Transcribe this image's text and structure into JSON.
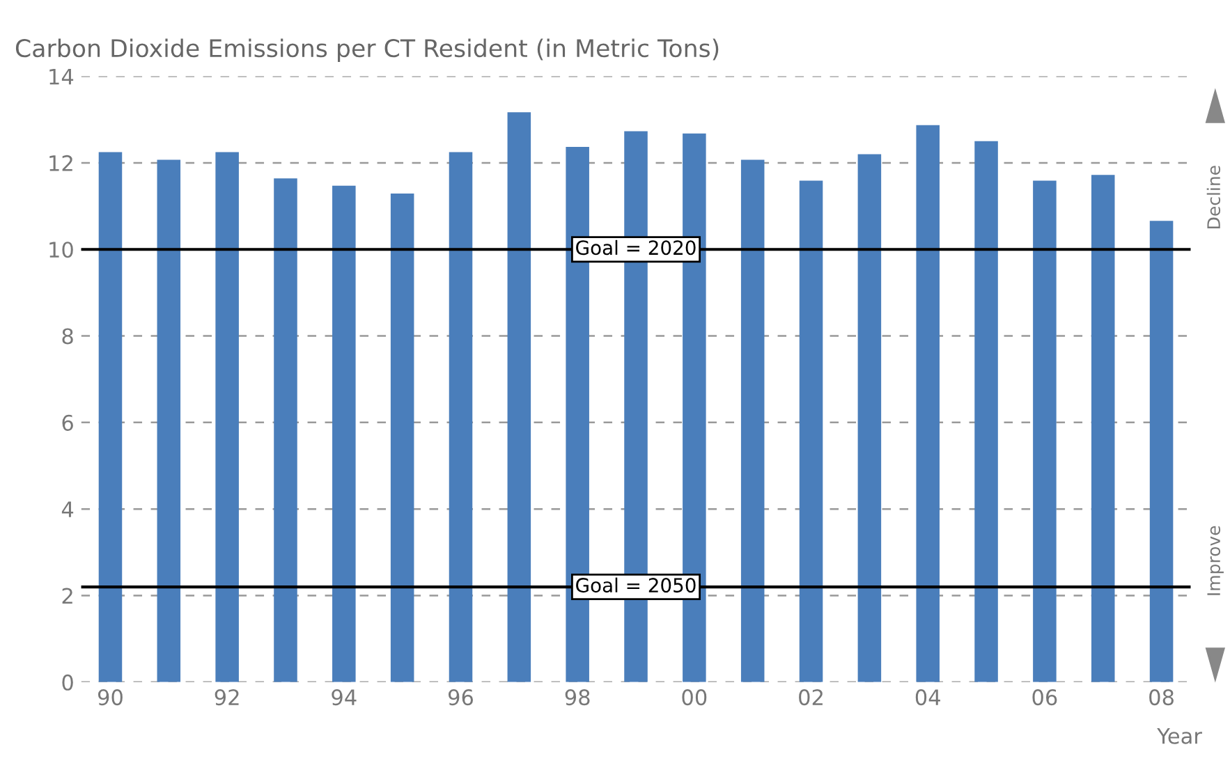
{
  "chart_data": {
    "type": "bar",
    "title": "Carbon Dioxide Emissions per CT Resident (in Metric Tons)",
    "xlabel": "Year",
    "categories": [
      "90",
      null,
      "92",
      null,
      "94",
      null,
      "96",
      null,
      "98",
      null,
      "00",
      null,
      "02",
      null,
      "04",
      null,
      "06",
      null,
      "08"
    ],
    "values": [
      12.25,
      12.07,
      12.25,
      11.64,
      11.47,
      11.29,
      12.25,
      13.17,
      12.37,
      12.73,
      12.68,
      12.07,
      11.59,
      12.2,
      12.87,
      12.5,
      11.59,
      11.72,
      10.66
    ],
    "color": "#4a7ebb",
    "ylim": [
      0,
      14
    ],
    "yticks": [
      0,
      2,
      4,
      6,
      8,
      10,
      12,
      14
    ],
    "grid": "y",
    "ref_lines": [
      {
        "axis": "y",
        "value": 10,
        "color": "#000000",
        "line_style": "solid"
      },
      {
        "axis": "y",
        "value": 2.2,
        "color": "#000000",
        "line_style": "solid"
      }
    ],
    "annotations": [
      {
        "text": "Goal = 2020",
        "y": 10
      },
      {
        "text": "Goal = 2050",
        "y": 2.2
      },
      "Decline",
      "Improve"
    ]
  }
}
